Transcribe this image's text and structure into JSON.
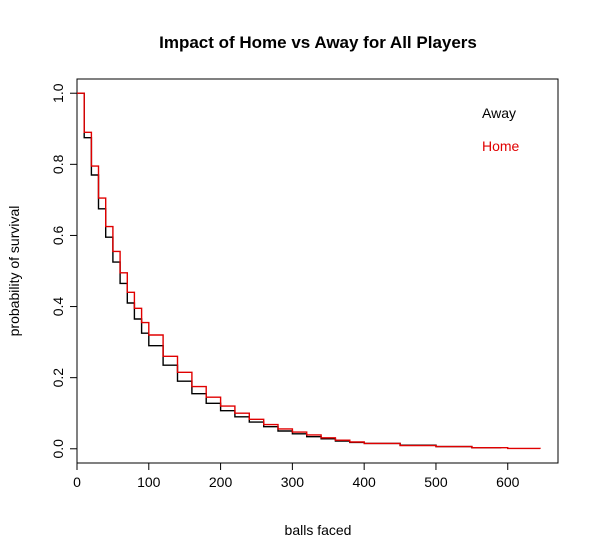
{
  "chart_data": {
    "type": "line",
    "title": "Impact of Home vs Away for All Players",
    "xlabel": "balls faced",
    "ylabel": "probability of survival",
    "xlim": [
      0,
      670
    ],
    "ylim": [
      -0.04,
      1.04
    ],
    "x_ticks": [
      0,
      100,
      200,
      300,
      400,
      500,
      600
    ],
    "x_tick_labels": [
      "0",
      "100",
      "200",
      "300",
      "400",
      "500",
      "600"
    ],
    "y_ticks": [
      0.0,
      0.2,
      0.4,
      0.6,
      0.8,
      1.0
    ],
    "y_tick_labels": [
      "0.0",
      "0.2",
      "0.4",
      "0.6",
      "0.8",
      "1.0"
    ],
    "grid": false,
    "legend_position": "top-right",
    "series": [
      {
        "name": "Away",
        "color": "#000000",
        "step": true,
        "x": [
          0,
          10,
          20,
          30,
          40,
          50,
          60,
          70,
          80,
          90,
          100,
          120,
          140,
          160,
          180,
          200,
          220,
          240,
          260,
          280,
          300,
          320,
          340,
          360,
          380,
          400,
          450,
          500,
          550,
          590
        ],
        "y": [
          1.0,
          0.875,
          0.77,
          0.675,
          0.595,
          0.525,
          0.465,
          0.41,
          0.365,
          0.325,
          0.29,
          0.235,
          0.19,
          0.155,
          0.128,
          0.107,
          0.09,
          0.075,
          0.062,
          0.05,
          0.042,
          0.034,
          0.028,
          0.022,
          0.018,
          0.015,
          0.01,
          0.006,
          0.003,
          0.001
        ]
      },
      {
        "name": "Home",
        "color": "#e00000",
        "step": true,
        "x": [
          0,
          10,
          20,
          30,
          40,
          50,
          60,
          70,
          80,
          90,
          100,
          120,
          140,
          160,
          180,
          200,
          220,
          240,
          260,
          280,
          300,
          320,
          340,
          360,
          380,
          400,
          450,
          500,
          550,
          600,
          645
        ],
        "y": [
          1.0,
          0.89,
          0.795,
          0.705,
          0.625,
          0.555,
          0.495,
          0.44,
          0.395,
          0.355,
          0.32,
          0.26,
          0.215,
          0.175,
          0.145,
          0.12,
          0.1,
          0.083,
          0.068,
          0.056,
          0.047,
          0.039,
          0.031,
          0.024,
          0.019,
          0.015,
          0.009,
          0.006,
          0.003,
          0.001,
          0.0
        ]
      }
    ]
  }
}
